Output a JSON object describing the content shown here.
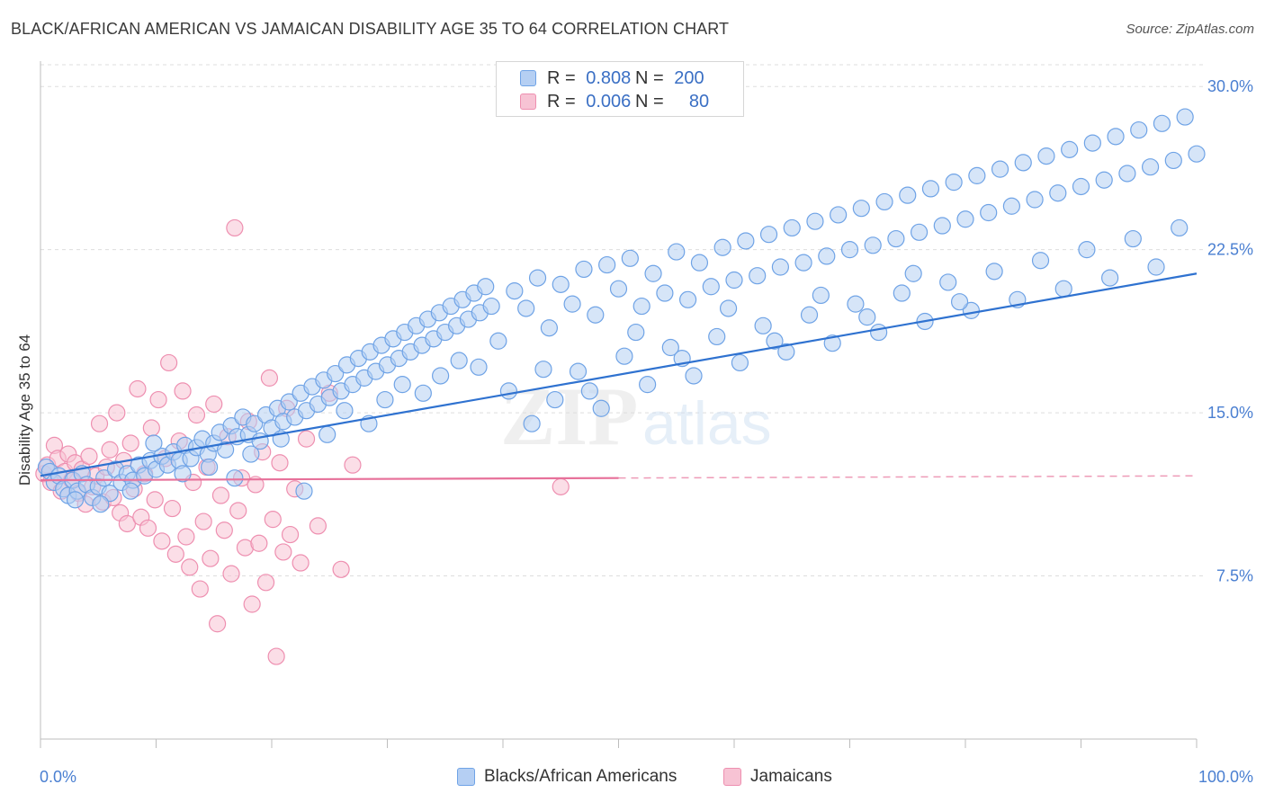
{
  "header": {
    "title": "BLACK/AFRICAN AMERICAN VS JAMAICAN DISABILITY AGE 35 TO 64 CORRELATION CHART",
    "source": "Source: ZipAtlas.com"
  },
  "colors": {
    "blue": "#6fa3e6",
    "blue_fill": "#b5cff3",
    "blue_line": "#2f72d0",
    "pink": "#ee8fb0",
    "pink_fill": "#f7c3d4",
    "pink_line": "#e7719a",
    "axis_text": "#4a7fd1",
    "grid": "#dddddd"
  },
  "legend_top": {
    "rows": [
      {
        "r_label": "R =",
        "r_value": "0.808",
        "n_label": "N =",
        "n_value": "200"
      },
      {
        "r_label": "R =",
        "r_value": "0.006",
        "n_label": "N =",
        "n_value": "80"
      }
    ]
  },
  "legend_bottom": {
    "items": [
      "Blacks/African Americans",
      "Jamaicans"
    ]
  },
  "watermark": {
    "zip": "ZIP",
    "atlas": "atlas"
  },
  "chart_data": {
    "type": "scatter",
    "title": "BLACK/AFRICAN AMERICAN VS JAMAICAN DISABILITY AGE 35 TO 64 CORRELATION CHART",
    "xlabel": "",
    "ylabel": "Disability Age 35 to 64",
    "xlim": [
      0,
      100
    ],
    "ylim": [
      0,
      31
    ],
    "x_tick_labels": [
      "0.0%",
      "100.0%"
    ],
    "y_ticks": [
      7.5,
      15.0,
      22.5,
      30.0
    ],
    "y_tick_labels": [
      "7.5%",
      "15.0%",
      "22.5%",
      "30.0%"
    ],
    "series": [
      {
        "name": "Blacks/African Americans",
        "r": 0.808,
        "n": 200,
        "trend": {
          "x": [
            0,
            100
          ],
          "y": [
            12.1,
            21.4
          ],
          "dashed_from": null
        },
        "points": [
          [
            0.5,
            12.5
          ],
          [
            0.8,
            12.3
          ],
          [
            1.2,
            11.8
          ],
          [
            1.6,
            12.1
          ],
          [
            2.0,
            11.5
          ],
          [
            2.4,
            11.2
          ],
          [
            2.8,
            11.9
          ],
          [
            3.2,
            11.4
          ],
          [
            3.6,
            12.2
          ],
          [
            4.0,
            11.7
          ],
          [
            4.5,
            11.1
          ],
          [
            5.0,
            11.6
          ],
          [
            5.5,
            12.0
          ],
          [
            6.0,
            11.3
          ],
          [
            6.5,
            12.4
          ],
          [
            7.0,
            11.8
          ],
          [
            7.5,
            12.2
          ],
          [
            8.0,
            11.9
          ],
          [
            8.5,
            12.6
          ],
          [
            9.0,
            12.1
          ],
          [
            9.5,
            12.8
          ],
          [
            10.0,
            12.4
          ],
          [
            10.5,
            13.0
          ],
          [
            11.0,
            12.6
          ],
          [
            11.5,
            13.2
          ],
          [
            12.0,
            12.8
          ],
          [
            12.5,
            13.5
          ],
          [
            13.0,
            12.9
          ],
          [
            13.5,
            13.4
          ],
          [
            14.0,
            13.8
          ],
          [
            14.5,
            13.1
          ],
          [
            15.0,
            13.6
          ],
          [
            15.5,
            14.1
          ],
          [
            16.0,
            13.3
          ],
          [
            16.5,
            14.4
          ],
          [
            17.0,
            13.9
          ],
          [
            17.5,
            14.8
          ],
          [
            18.0,
            14.0
          ],
          [
            18.5,
            14.5
          ],
          [
            19.0,
            13.7
          ],
          [
            19.5,
            14.9
          ],
          [
            20.0,
            14.3
          ],
          [
            20.5,
            15.2
          ],
          [
            21.0,
            14.6
          ],
          [
            21.5,
            15.5
          ],
          [
            22.0,
            14.8
          ],
          [
            22.5,
            15.9
          ],
          [
            23.0,
            15.1
          ],
          [
            23.5,
            16.2
          ],
          [
            24.0,
            15.4
          ],
          [
            24.5,
            16.5
          ],
          [
            25.0,
            15.7
          ],
          [
            25.5,
            16.8
          ],
          [
            26.0,
            16.0
          ],
          [
            26.5,
            17.2
          ],
          [
            27.0,
            16.3
          ],
          [
            27.5,
            17.5
          ],
          [
            28.0,
            16.6
          ],
          [
            28.5,
            17.8
          ],
          [
            29.0,
            16.9
          ],
          [
            29.5,
            18.1
          ],
          [
            30.0,
            17.2
          ],
          [
            30.5,
            18.4
          ],
          [
            31.0,
            17.5
          ],
          [
            31.5,
            18.7
          ],
          [
            32.0,
            17.8
          ],
          [
            32.5,
            19.0
          ],
          [
            33.0,
            18.1
          ],
          [
            33.5,
            19.3
          ],
          [
            34.0,
            18.4
          ],
          [
            34.5,
            19.6
          ],
          [
            35.0,
            18.7
          ],
          [
            35.5,
            19.9
          ],
          [
            36.0,
            19.0
          ],
          [
            36.5,
            20.2
          ],
          [
            37.0,
            19.3
          ],
          [
            37.5,
            20.5
          ],
          [
            38.0,
            19.6
          ],
          [
            38.5,
            20.8
          ],
          [
            39.0,
            19.9
          ],
          [
            3.0,
            11.0
          ],
          [
            5.2,
            10.8
          ],
          [
            7.8,
            11.4
          ],
          [
            9.8,
            13.6
          ],
          [
            12.3,
            12.2
          ],
          [
            14.6,
            12.5
          ],
          [
            16.8,
            12.0
          ],
          [
            18.2,
            13.1
          ],
          [
            20.8,
            13.8
          ],
          [
            22.8,
            11.4
          ],
          [
            24.8,
            14.0
          ],
          [
            26.3,
            15.1
          ],
          [
            28.4,
            14.5
          ],
          [
            29.8,
            15.6
          ],
          [
            31.3,
            16.3
          ],
          [
            33.1,
            15.9
          ],
          [
            34.6,
            16.7
          ],
          [
            36.2,
            17.4
          ],
          [
            37.9,
            17.1
          ],
          [
            39.6,
            18.3
          ],
          [
            41.0,
            20.6
          ],
          [
            42.0,
            19.8
          ],
          [
            43.0,
            21.2
          ],
          [
            44.0,
            18.9
          ],
          [
            45.0,
            20.9
          ],
          [
            46.0,
            20.0
          ],
          [
            47.0,
            21.6
          ],
          [
            48.0,
            19.5
          ],
          [
            49.0,
            21.8
          ],
          [
            50.0,
            20.7
          ],
          [
            51.0,
            22.1
          ],
          [
            52.0,
            19.9
          ],
          [
            53.0,
            21.4
          ],
          [
            54.0,
            20.5
          ],
          [
            55.0,
            22.4
          ],
          [
            56.0,
            20.2
          ],
          [
            57.0,
            21.9
          ],
          [
            58.0,
            20.8
          ],
          [
            59.0,
            22.6
          ],
          [
            60.0,
            21.1
          ],
          [
            61.0,
            22.9
          ],
          [
            62.0,
            21.3
          ],
          [
            63.0,
            23.2
          ],
          [
            64.0,
            21.7
          ],
          [
            65.0,
            23.5
          ],
          [
            66.0,
            21.9
          ],
          [
            67.0,
            23.8
          ],
          [
            68.0,
            22.2
          ],
          [
            69.0,
            24.1
          ],
          [
            70.0,
            22.5
          ],
          [
            71.0,
            24.4
          ],
          [
            72.0,
            22.7
          ],
          [
            73.0,
            24.7
          ],
          [
            74.0,
            23.0
          ],
          [
            75.0,
            25.0
          ],
          [
            76.0,
            23.3
          ],
          [
            77.0,
            25.3
          ],
          [
            78.0,
            23.6
          ],
          [
            79.0,
            25.6
          ],
          [
            80.0,
            23.9
          ],
          [
            81.0,
            25.9
          ],
          [
            82.0,
            24.2
          ],
          [
            83.0,
            26.2
          ],
          [
            84.0,
            24.5
          ],
          [
            85.0,
            26.5
          ],
          [
            86.0,
            24.8
          ],
          [
            87.0,
            26.8
          ],
          [
            88.0,
            25.1
          ],
          [
            89.0,
            27.1
          ],
          [
            90.0,
            25.4
          ],
          [
            91.0,
            27.4
          ],
          [
            92.0,
            25.7
          ],
          [
            93.0,
            27.7
          ],
          [
            94.0,
            26.0
          ],
          [
            95.0,
            28.0
          ],
          [
            96.0,
            26.3
          ],
          [
            97.0,
            28.3
          ],
          [
            98.0,
            26.6
          ],
          [
            99.0,
            28.6
          ],
          [
            100.0,
            26.9
          ],
          [
            40.5,
            16.0
          ],
          [
            42.5,
            14.5
          ],
          [
            44.5,
            15.6
          ],
          [
            46.5,
            16.9
          ],
          [
            48.5,
            15.2
          ],
          [
            50.5,
            17.6
          ],
          [
            52.5,
            16.3
          ],
          [
            54.5,
            18.0
          ],
          [
            56.5,
            16.7
          ],
          [
            58.5,
            18.5
          ],
          [
            60.5,
            17.3
          ],
          [
            62.5,
            19.0
          ],
          [
            64.5,
            17.8
          ],
          [
            66.5,
            19.5
          ],
          [
            68.5,
            18.2
          ],
          [
            70.5,
            20.0
          ],
          [
            72.5,
            18.7
          ],
          [
            74.5,
            20.5
          ],
          [
            76.5,
            19.2
          ],
          [
            78.5,
            21.0
          ],
          [
            80.5,
            19.7
          ],
          [
            82.5,
            21.5
          ],
          [
            84.5,
            20.2
          ],
          [
            86.5,
            22.0
          ],
          [
            88.5,
            20.7
          ],
          [
            90.5,
            22.5
          ],
          [
            92.5,
            21.2
          ],
          [
            94.5,
            23.0
          ],
          [
            96.5,
            21.7
          ],
          [
            98.5,
            23.5
          ],
          [
            43.5,
            17.0
          ],
          [
            47.5,
            16.0
          ],
          [
            51.5,
            18.7
          ],
          [
            55.5,
            17.5
          ],
          [
            59.5,
            19.8
          ],
          [
            63.5,
            18.3
          ],
          [
            67.5,
            20.4
          ],
          [
            71.5,
            19.4
          ],
          [
            75.5,
            21.4
          ],
          [
            79.5,
            20.1
          ]
        ]
      },
      {
        "name": "Jamaicans",
        "r": 0.006,
        "n": 80,
        "trend": {
          "x": [
            0,
            100
          ],
          "y": [
            11.9,
            12.1
          ],
          "dashed_from": 50
        },
        "points": [
          [
            0.3,
            12.2
          ],
          [
            0.6,
            12.6
          ],
          [
            0.9,
            11.8
          ],
          [
            1.2,
            13.5
          ],
          [
            1.5,
            12.9
          ],
          [
            1.8,
            11.4
          ],
          [
            2.1,
            12.3
          ],
          [
            2.4,
            13.1
          ],
          [
            2.7,
            11.9
          ],
          [
            3.0,
            12.7
          ],
          [
            3.3,
            11.3
          ],
          [
            3.6,
            12.4
          ],
          [
            3.9,
            10.8
          ],
          [
            4.2,
            13.0
          ],
          [
            4.5,
            11.6
          ],
          [
            4.8,
            12.1
          ],
          [
            5.1,
            14.5
          ],
          [
            5.4,
            10.9
          ],
          [
            5.7,
            12.5
          ],
          [
            6.0,
            13.3
          ],
          [
            6.3,
            11.1
          ],
          [
            6.6,
            15.0
          ],
          [
            6.9,
            10.4
          ],
          [
            7.2,
            12.8
          ],
          [
            7.5,
            9.9
          ],
          [
            7.8,
            13.6
          ],
          [
            8.1,
            11.5
          ],
          [
            8.4,
            16.1
          ],
          [
            8.7,
            10.2
          ],
          [
            9.0,
            12.2
          ],
          [
            9.3,
            9.7
          ],
          [
            9.6,
            14.3
          ],
          [
            9.9,
            11.0
          ],
          [
            10.2,
            15.6
          ],
          [
            10.5,
            9.1
          ],
          [
            10.8,
            12.9
          ],
          [
            11.1,
            17.3
          ],
          [
            11.4,
            10.6
          ],
          [
            11.7,
            8.5
          ],
          [
            12.0,
            13.7
          ],
          [
            12.3,
            16.0
          ],
          [
            12.6,
            9.3
          ],
          [
            12.9,
            7.9
          ],
          [
            13.2,
            11.8
          ],
          [
            13.5,
            14.9
          ],
          [
            13.8,
            6.9
          ],
          [
            14.1,
            10.0
          ],
          [
            14.4,
            12.5
          ],
          [
            14.7,
            8.3
          ],
          [
            15.0,
            15.4
          ],
          [
            15.3,
            5.3
          ],
          [
            15.6,
            11.2
          ],
          [
            15.9,
            9.6
          ],
          [
            16.2,
            13.9
          ],
          [
            16.5,
            7.6
          ],
          [
            16.8,
            23.5
          ],
          [
            17.1,
            10.5
          ],
          [
            17.4,
            12.0
          ],
          [
            17.7,
            8.8
          ],
          [
            18.0,
            14.6
          ],
          [
            18.3,
            6.2
          ],
          [
            18.6,
            11.7
          ],
          [
            18.9,
            9.0
          ],
          [
            19.2,
            13.2
          ],
          [
            19.5,
            7.2
          ],
          [
            19.8,
            16.6
          ],
          [
            20.1,
            10.1
          ],
          [
            20.4,
            3.8
          ],
          [
            20.7,
            12.7
          ],
          [
            21.0,
            8.6
          ],
          [
            21.3,
            15.2
          ],
          [
            21.6,
            9.4
          ],
          [
            22.0,
            11.5
          ],
          [
            22.5,
            8.1
          ],
          [
            23.0,
            13.8
          ],
          [
            24.0,
            9.8
          ],
          [
            25.0,
            15.9
          ],
          [
            26.0,
            7.8
          ],
          [
            27.0,
            12.6
          ],
          [
            45.0,
            11.6
          ]
        ]
      }
    ]
  }
}
